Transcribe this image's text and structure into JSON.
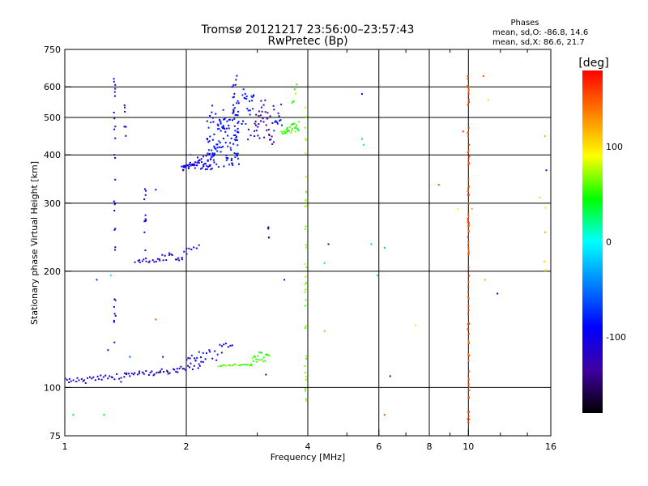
{
  "chart_data": {
    "type": "scatter",
    "title": "Tromsø 20121217 23:56:00–23:57:43",
    "subtitle": "RwPretec (Bp)",
    "xlabel": "Frequency [MHz]",
    "ylabel": "Stationary phase Virtual Height [km]",
    "x_scale": "log",
    "y_scale": "log",
    "xlim": [
      1,
      16
    ],
    "ylim": [
      75,
      750
    ],
    "x_ticks": [
      1,
      2,
      4,
      6,
      8,
      10,
      16
    ],
    "x_tick_labels": [
      "1",
      "2",
      "4",
      "6",
      "8",
      "10",
      "16"
    ],
    "x_minor_ticks": [
      3,
      5,
      7,
      9,
      12,
      14
    ],
    "y_ticks": [
      75,
      100,
      200,
      300,
      400,
      500,
      600,
      750
    ],
    "y_tick_labels": [
      "75",
      "100",
      "200",
      "300",
      "400",
      "500",
      "600",
      "750"
    ],
    "grid": true,
    "stats": {
      "heading": "Phases",
      "line_o": "mean, sd,O: -86.8, 14.6",
      "line_x": "mean, sd,X:  86.6, 21.7"
    },
    "colorbar": {
      "label": "[deg]",
      "range": [
        -180,
        180
      ],
      "ticks": [
        100,
        0,
        -100
      ],
      "tick_labels": [
        "100",
        "0",
        "-100"
      ],
      "colors": [
        "#ff0000",
        "#ff8000",
        "#ffff00",
        "#00ff00",
        "#00ffff",
        "#0080ff",
        "#0000ff",
        "#4000a0",
        "#000000"
      ]
    },
    "series": [
      {
        "traces": [
          {
            "x": [
              1.0,
              1.4
            ],
            "y": [
              104,
              109
            ],
            "phase": -105,
            "n": 34,
            "jitter": 0.03
          },
          {
            "x": [
              1.4,
              1.9
            ],
            "y": [
              108,
              112
            ],
            "phase": -110,
            "n": 34,
            "jitter": 0.02
          },
          {
            "x": [
              1.9,
              2.2
            ],
            "y": [
              112,
              120
            ],
            "phase": -105,
            "n": 16,
            "jitter": 0.03
          },
          {
            "x": [
              2.0,
              2.45
            ],
            "y": [
              118,
              130
            ],
            "phase": -95,
            "n": 20,
            "jitter": 0.03
          },
          {
            "x": [
              2.45,
              2.6
            ],
            "y": [
              128,
              133
            ],
            "phase": -100,
            "n": 6,
            "jitter": 0.02
          },
          {
            "x": [
              2.4,
              2.9
            ],
            "y": [
              114,
              115
            ],
            "phase": 55,
            "n": 18,
            "jitter": 0.01
          },
          {
            "x": [
              2.9,
              3.2
            ],
            "y": [
              117,
              128
            ],
            "phase": 55,
            "n": 20,
            "jitter": 0.04
          },
          {
            "x": [
              1.5,
              2.0
            ],
            "y": [
              212,
              230
            ],
            "phase": -115,
            "n": 32,
            "jitter": 0.02
          },
          {
            "x": [
              2.0,
              2.15
            ],
            "y": [
              228,
              234
            ],
            "phase": -110,
            "n": 6,
            "jitter": 0.01
          },
          {
            "x": [
              1.95,
              2.35
            ],
            "y": [
              370,
              410
            ],
            "phase": -100,
            "n": 60,
            "jitter": 0.035
          },
          {
            "x": [
              2.25,
              2.7
            ],
            "y": [
              380,
              520
            ],
            "phase": -85,
            "n": 110,
            "jitter": 0.07
          },
          {
            "x": [
              2.6,
              2.7
            ],
            "y": [
              430,
              640
            ],
            "phase": -90,
            "n": 28,
            "jitter": 0.03
          },
          {
            "x": [
              2.75,
              2.95
            ],
            "y": [
              440,
              600
            ],
            "phase": -85,
            "n": 25,
            "jitter": 0.05
          },
          {
            "x": [
              2.95,
              3.3
            ],
            "y": [
              430,
              560
            ],
            "phase": -130,
            "n": 40,
            "jitter": 0.05
          },
          {
            "x": [
              3.3,
              3.45
            ],
            "y": [
              470,
              580
            ],
            "phase": -80,
            "n": 12,
            "jitter": 0.04
          },
          {
            "x": [
              3.45,
              3.8
            ],
            "y": [
              455,
              500
            ],
            "phase": 55,
            "n": 30,
            "jitter": 0.02
          },
          {
            "x": [
              3.65,
              3.75
            ],
            "y": [
              550,
              640
            ],
            "phase": 60,
            "n": 6,
            "jitter": 0.02
          }
        ],
        "columns": [
          {
            "x": 1.33,
            "y": [
              130,
              640
            ],
            "phase": -105,
            "n": 30
          },
          {
            "x": 1.41,
            "y": [
              430,
              550
            ],
            "phase": -100,
            "n": 6
          },
          {
            "x": 1.58,
            "y": [
              220,
              330
            ],
            "phase": -95,
            "n": 12
          },
          {
            "x": 3.2,
            "y": [
              240,
              260
            ],
            "phase": -140,
            "n": 5
          },
          {
            "x": 3.95,
            "y": [
              88,
              600
            ],
            "phase": 65,
            "n": 40
          },
          {
            "x": 10.0,
            "y": [
              80,
              640
            ],
            "phase": 150,
            "n": 90
          },
          {
            "x": 15.5,
            "y": [
              200,
              470
            ],
            "phase": 110,
            "n": 6
          }
        ],
        "points": [
          {
            "x": 1.2,
            "y": 190,
            "phase": -115
          },
          {
            "x": 1.3,
            "y": 195,
            "phase": -10
          },
          {
            "x": 1.28,
            "y": 125,
            "phase": -100
          },
          {
            "x": 1.45,
            "y": 120,
            "phase": -60
          },
          {
            "x": 1.68,
            "y": 325,
            "phase": -120
          },
          {
            "x": 1.68,
            "y": 150,
            "phase": 150
          },
          {
            "x": 1.75,
            "y": 120,
            "phase": -110
          },
          {
            "x": 2.05,
            "y": 400,
            "phase": -60
          },
          {
            "x": 3.5,
            "y": 190,
            "phase": -110
          },
          {
            "x": 3.15,
            "y": 108,
            "phase": -140
          },
          {
            "x": 4.5,
            "y": 235,
            "phase": -120
          },
          {
            "x": 4.4,
            "y": 140,
            "phase": 60
          },
          {
            "x": 4.4,
            "y": 210,
            "phase": -20
          },
          {
            "x": 5.45,
            "y": 575,
            "phase": -100
          },
          {
            "x": 5.45,
            "y": 440,
            "phase": -20
          },
          {
            "x": 5.5,
            "y": 425,
            "phase": -15
          },
          {
            "x": 5.75,
            "y": 235,
            "phase": -20
          },
          {
            "x": 5.95,
            "y": 195,
            "phase": -20
          },
          {
            "x": 6.2,
            "y": 230,
            "phase": -25
          },
          {
            "x": 6.2,
            "y": 85,
            "phase": 150
          },
          {
            "x": 6.4,
            "y": 107,
            "phase": -140
          },
          {
            "x": 7.4,
            "y": 145,
            "phase": 80
          },
          {
            "x": 8.45,
            "y": 335,
            "phase": 150
          },
          {
            "x": 9.4,
            "y": 290,
            "phase": 90
          },
          {
            "x": 9.7,
            "y": 460,
            "phase": 160
          },
          {
            "x": 10.2,
            "y": 290,
            "phase": 120
          },
          {
            "x": 10.9,
            "y": 640,
            "phase": 150
          },
          {
            "x": 11.2,
            "y": 555,
            "phase": 100
          },
          {
            "x": 11.0,
            "y": 190,
            "phase": 120
          },
          {
            "x": 11.8,
            "y": 175,
            "phase": -90
          },
          {
            "x": 15.0,
            "y": 310,
            "phase": 100
          },
          {
            "x": 15.6,
            "y": 365,
            "phase": -100
          },
          {
            "x": 1.05,
            "y": 85,
            "phase": 40
          },
          {
            "x": 1.25,
            "y": 85,
            "phase": 40
          },
          {
            "x": 2.15,
            "y": 115,
            "phase": -80
          }
        ]
      }
    ]
  }
}
